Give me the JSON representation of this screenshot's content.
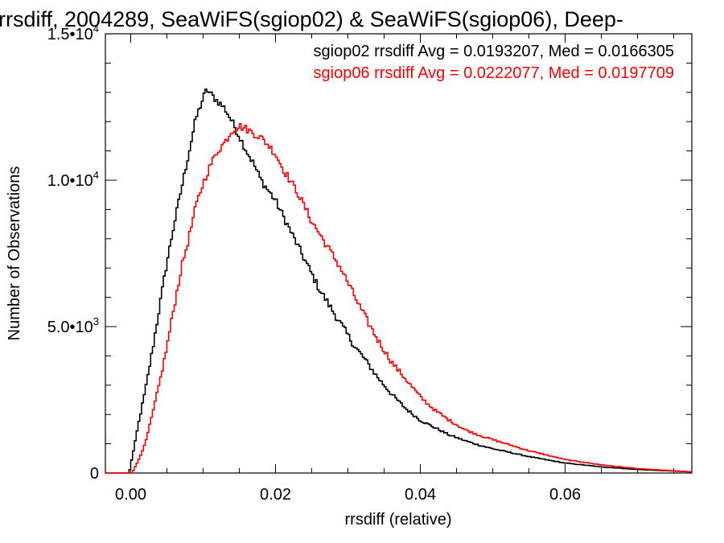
{
  "chart_data": {
    "type": "line",
    "title": "rrsdiff, 2004289, SeaWiFS(sgiop02) & SeaWiFS(sgiop06), Deep-",
    "xlabel": "rrsdiff (relative)",
    "ylabel": "Number of Observations",
    "xlim": [
      -0.0035,
      0.0775
    ],
    "ylim": [
      0,
      15000
    ],
    "x_ticks": [
      {
        "value": 0.0,
        "label": "0.00"
      },
      {
        "value": 0.02,
        "label": "0.02"
      },
      {
        "value": 0.04,
        "label": "0.04"
      },
      {
        "value": 0.06,
        "label": "0.06"
      }
    ],
    "y_ticks": [
      {
        "value": 0,
        "mant": "0",
        "exp": ""
      },
      {
        "value": 5000,
        "mant": "5.0•10",
        "exp": "3"
      },
      {
        "value": 10000,
        "mant": "1.0•10",
        "exp": "4"
      },
      {
        "value": 15000,
        "mant": "1.5•10",
        "exp": "4"
      }
    ],
    "grid": false,
    "legend": "top-right",
    "series": [
      {
        "label": "sgiop02 rrsdiff Avg = 0.0193207, Med = 0.0166305",
        "color": "#000000",
        "x": [
          -0.002,
          -0.0002,
          0.0,
          0.0005,
          0.001,
          0.002,
          0.003,
          0.004,
          0.005,
          0.006,
          0.007,
          0.008,
          0.009,
          0.01,
          0.0105,
          0.011,
          0.012,
          0.013,
          0.014,
          0.015,
          0.016,
          0.017,
          0.018,
          0.019,
          0.02,
          0.021,
          0.022,
          0.023,
          0.024,
          0.025,
          0.026,
          0.027,
          0.028,
          0.029,
          0.03,
          0.031,
          0.032,
          0.034,
          0.036,
          0.038,
          0.04,
          0.042,
          0.044,
          0.046,
          0.048,
          0.05,
          0.055,
          0.06,
          0.065,
          0.07,
          0.0775
        ],
        "y": [
          0,
          0,
          300,
          900,
          1600,
          2800,
          4200,
          5700,
          7200,
          8500,
          9700,
          10900,
          12100,
          12800,
          13100,
          12950,
          12700,
          12450,
          12000,
          11500,
          11000,
          10550,
          10000,
          9650,
          9300,
          8800,
          8300,
          7800,
          7300,
          6800,
          6300,
          5900,
          5500,
          5100,
          4700,
          4300,
          4000,
          3300,
          2700,
          2200,
          1800,
          1550,
          1300,
          1120,
          960,
          830,
          560,
          340,
          210,
          120,
          40
        ]
      },
      {
        "label": "sgiop06 rrsdiff Avg = 0.0222077, Med = 0.0197709",
        "color": "#ff0000",
        "x": [
          -0.002,
          0.0002,
          0.0005,
          0.001,
          0.002,
          0.003,
          0.004,
          0.005,
          0.006,
          0.007,
          0.008,
          0.009,
          0.01,
          0.011,
          0.012,
          0.013,
          0.014,
          0.015,
          0.016,
          0.017,
          0.018,
          0.019,
          0.02,
          0.021,
          0.022,
          0.023,
          0.024,
          0.025,
          0.026,
          0.027,
          0.028,
          0.029,
          0.03,
          0.031,
          0.032,
          0.034,
          0.036,
          0.038,
          0.04,
          0.042,
          0.044,
          0.046,
          0.048,
          0.05,
          0.055,
          0.06,
          0.065,
          0.07,
          0.0775
        ],
        "y": [
          0,
          0,
          150,
          400,
          1000,
          2000,
          3100,
          4300,
          5700,
          7000,
          8000,
          9100,
          9900,
          10500,
          11000,
          11300,
          11700,
          11850,
          11750,
          11600,
          11450,
          11200,
          10900,
          10400,
          10000,
          9600,
          9100,
          8600,
          8200,
          7800,
          7400,
          7000,
          6500,
          6000,
          5500,
          4600,
          3800,
          3200,
          2600,
          2150,
          1800,
          1500,
          1300,
          1140,
          760,
          460,
          280,
          150,
          40
        ]
      }
    ]
  }
}
